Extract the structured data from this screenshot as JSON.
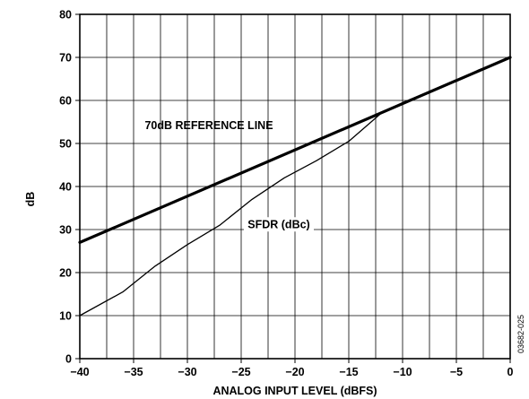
{
  "chart_data": {
    "type": "line",
    "title": "",
    "xlabel": "ANALOG INPUT LEVEL (dBFS)",
    "ylabel": "dB",
    "xlim": [
      -40,
      0
    ],
    "ylim": [
      0,
      80
    ],
    "xticks": [
      -40,
      -35,
      -30,
      -25,
      -20,
      -15,
      -10,
      -5,
      0
    ],
    "yticks": [
      0,
      10,
      20,
      30,
      40,
      50,
      60,
      70,
      80
    ],
    "x_minor_step": 2.5,
    "grid": true,
    "series": [
      {
        "name": "70dB REFERENCE LINE",
        "x": [
          -40,
          0
        ],
        "y": [
          27,
          70
        ]
      },
      {
        "name": "SFDR (dBc)",
        "x": [
          -40,
          -36,
          -33,
          -30,
          -27,
          -24,
          -21,
          -18,
          -15,
          -12,
          -10,
          -8,
          -5,
          -3,
          -1,
          0
        ],
        "y": [
          10,
          15.5,
          21.5,
          26.5,
          31,
          37,
          42,
          46,
          50.5,
          57,
          59.5,
          61.5,
          64.5,
          67,
          69,
          70
        ]
      }
    ],
    "annotations": [
      {
        "text": "70dB REFERENCE LINE",
        "x": -28,
        "y": 54.3
      },
      {
        "text": "SFDR (dBc)",
        "x": -21.5,
        "y": 31.2
      }
    ],
    "figure_code": "03682-025"
  }
}
